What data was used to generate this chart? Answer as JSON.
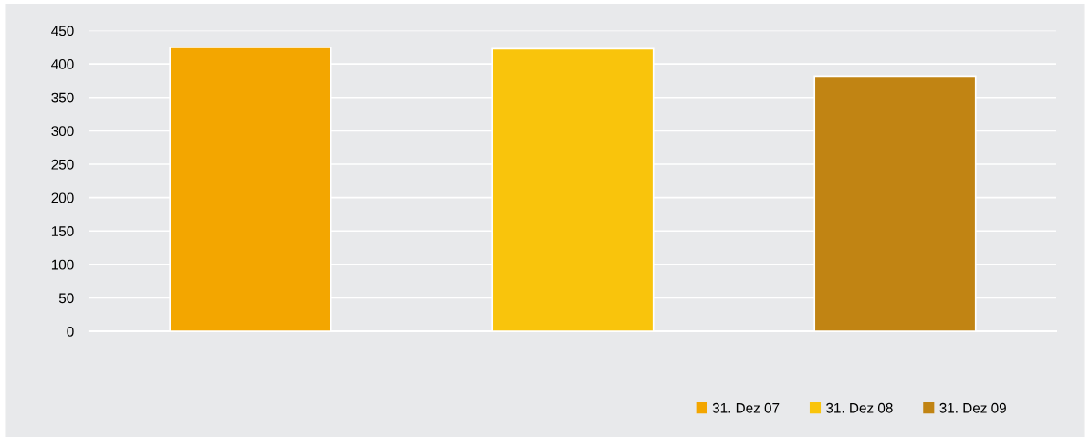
{
  "chart_data": {
    "type": "bar",
    "categories": [
      null,
      null,
      null
    ],
    "series": [
      {
        "name": "31. Dez 07",
        "color": "#f3a600",
        "values": [
          425,
          null,
          null
        ]
      },
      {
        "name": "31. Dez 08",
        "color": "#f9c40c",
        "values": [
          null,
          423,
          null
        ]
      },
      {
        "name": "31. Dez 09",
        "color": "#c18413",
        "values": [
          null,
          null,
          382
        ]
      }
    ],
    "ylim": [
      0,
      450
    ],
    "yticks": [
      0,
      50,
      100,
      150,
      200,
      250,
      300,
      350,
      400,
      450
    ],
    "grid": "y",
    "legend": "bottom right"
  }
}
